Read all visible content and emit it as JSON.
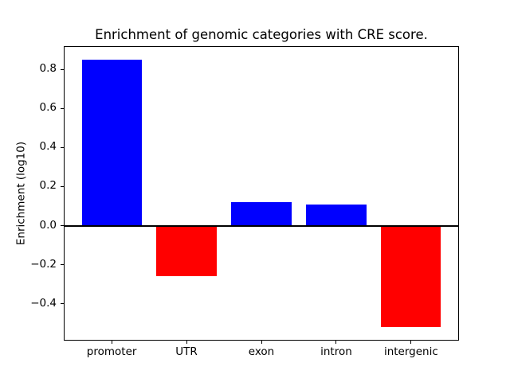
{
  "chart_data": {
    "type": "bar",
    "title": "Enrichment of genomic categories with CRE score.",
    "ylabel": "Enrichment (log10)",
    "xlabel": "",
    "categories": [
      "promoter",
      "UTR",
      "exon",
      "intron",
      "intergenic"
    ],
    "values": [
      0.85,
      -0.26,
      0.12,
      0.11,
      -0.52
    ],
    "bar_colors": [
      "#0000ff",
      "#ff0000",
      "#0000ff",
      "#0000ff",
      "#ff0000"
    ],
    "positive_color": "#0000ff",
    "negative_color": "#ff0000",
    "ylim": [
      -0.5885,
      0.9185
    ],
    "yticks": [
      -0.4,
      -0.2,
      0.0,
      0.2,
      0.4,
      0.6,
      0.8
    ],
    "ytick_labels": [
      "−0.4",
      "−0.2",
      "0.0",
      "0.2",
      "0.4",
      "0.6",
      "0.8"
    ],
    "bar_width_fraction": 0.8,
    "zero_line": true,
    "grid": false,
    "legend": "none"
  }
}
